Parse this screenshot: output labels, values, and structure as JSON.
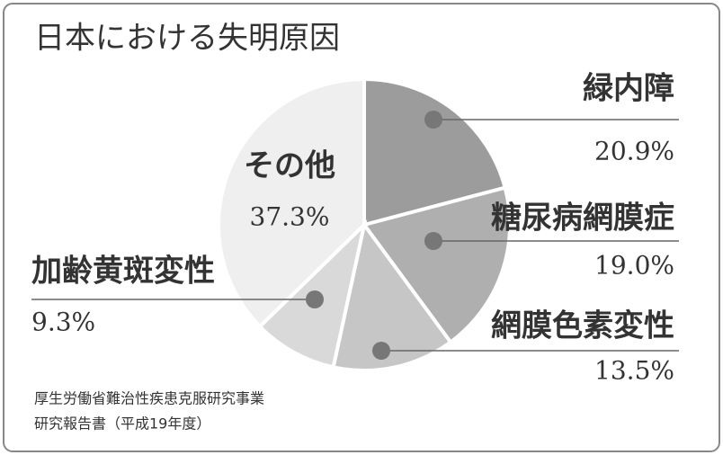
{
  "chart_data": {
    "type": "pie",
    "title": "日本における失明原因",
    "categories": [
      "緑内障",
      "糖尿病網膜症",
      "網膜色素変性",
      "加齢黄斑変性",
      "その他"
    ],
    "values": [
      20.9,
      19.0,
      13.5,
      9.3,
      37.3
    ],
    "value_labels": [
      "20.9%",
      "19.0%",
      "13.5%",
      "9.3%",
      "37.3%"
    ],
    "colors": [
      "#9c9c9c",
      "#afafaf",
      "#c6c6c6",
      "#d9d9d9",
      "#efefef"
    ],
    "source": [
      "厚生労働省難治性疾患克服研究事業",
      "研究報告書（平成19年度）"
    ]
  }
}
